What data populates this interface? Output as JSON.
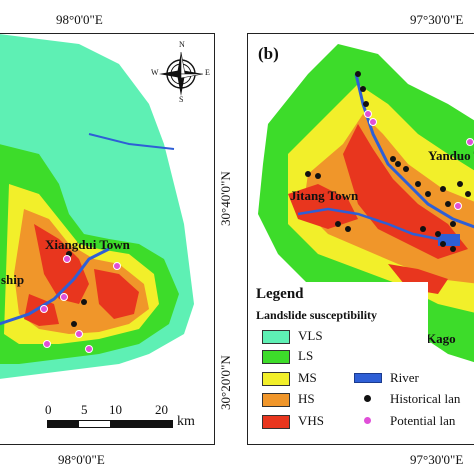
{
  "left_panel": {
    "top_coord": "98°0'0\"E",
    "bottom_coord": "98°0'0\"E",
    "towns": [
      "Xiangdui Town",
      "ship"
    ],
    "scale": {
      "labels": [
        "0",
        "5",
        "10",
        "20"
      ],
      "unit": "km"
    },
    "north_arrow": {
      "N": "N",
      "S": "S",
      "E": "E",
      "W": "W"
    }
  },
  "right_panel": {
    "panel_label": "(b)",
    "top_coord": "97°30'0\"E",
    "bottom_coord": "97°30'0\"E",
    "towns": [
      "Yanduo T",
      "Jitang Town",
      "Kago"
    ]
  },
  "lat_labels": [
    "30°40'0\"N",
    "30°20'0\"N"
  ],
  "legend": {
    "title": "Legend",
    "subtitle": "Landslide susceptibility",
    "classes": [
      {
        "label": "VLS",
        "color": "#5ef0b4"
      },
      {
        "label": "LS",
        "color": "#3ddc2a"
      },
      {
        "label": "MS",
        "color": "#f2ef2a"
      },
      {
        "label": "HS",
        "color": "#f0962a"
      },
      {
        "label": "VHS",
        "color": "#e8361e"
      }
    ],
    "river": "River",
    "historical": "Historical lan",
    "potential": "Potential lan"
  }
}
